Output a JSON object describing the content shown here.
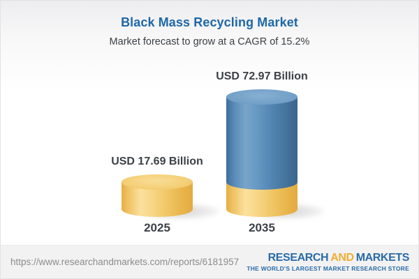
{
  "header": {
    "title": "Black Mass Recycling Market",
    "subtitle": "Market forecast to grow at a CAGR of 15.2%"
  },
  "chart_data": {
    "type": "bar",
    "subtype": "3d-cylinder-infographic",
    "title": "Black Mass Recycling Market",
    "subtitle": "Market forecast to grow at a CAGR of 15.2%",
    "cagr_percent": 15.2,
    "unit": "USD Billion",
    "categories": [
      "2025",
      "2035"
    ],
    "values": [
      17.69,
      72.97
    ],
    "data_labels": [
      "USD 17.69 Billion",
      "USD 72.97 Billion"
    ],
    "series": [
      {
        "name": "2025 base",
        "color": "#F3C964",
        "values": [
          17.69,
          17.69
        ]
      },
      {
        "name": "growth to 2035",
        "color": "#4D82B2",
        "values": [
          0,
          55.28
        ]
      }
    ],
    "legend": "none",
    "axes": "none",
    "grid": false
  },
  "footer": {
    "url": "https://www.researchandmarkets.com/reports/6181957",
    "logo": {
      "word1": "RESEARCH",
      "word2": "AND",
      "word3": "MARKETS",
      "tagline": "THE WORLD'S LARGEST MARKET RESEARCH STORE",
      "blue": "#2A6BA6",
      "orange": "#EFAE33"
    }
  },
  "colors": {
    "title_blue": "#1E67A7",
    "subtitle_gray": "#3C4043",
    "bar_yellow": "#F3C964",
    "bar_blue": "#4D82B2",
    "label_dark": "#3C4145",
    "footer_bg": "#F2F2F3",
    "url_gray": "#8C8C8C"
  }
}
